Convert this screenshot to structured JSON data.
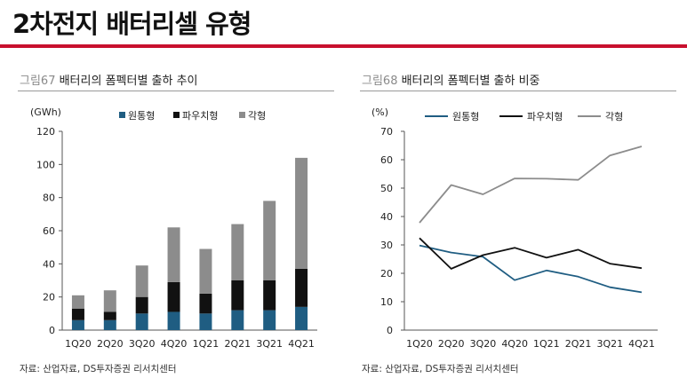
{
  "page": {
    "title": "2차전지 배터리셀 유형"
  },
  "colors": {
    "accent_red": "#c8102e",
    "cylindrical": "#1f5d82",
    "pouch": "#111111",
    "prismatic": "#8c8c8c"
  },
  "left": {
    "fig_num": "그림67",
    "fig_title": " 배터리의 폼펙터별 출하 추이",
    "source": "자료: 산업자료, DS투자증권 리서치센터"
  },
  "right": {
    "fig_num": "그림68",
    "fig_title": " 배터리의 폼펙터별 출하 비중",
    "source": "자료: 산업자료, DS투자증권 리서치센터"
  },
  "chart_data": [
    {
      "type": "bar",
      "stacked": true,
      "title": "배터리의 폼펙터별 출하 추이",
      "unit_label": "(GWh)",
      "ylim": [
        0,
        120
      ],
      "yticks": [
        0,
        20,
        40,
        60,
        80,
        100,
        120
      ],
      "categories": [
        "1Q20",
        "2Q20",
        "3Q20",
        "4Q20",
        "1Q21",
        "2Q21",
        "3Q21",
        "4Q21"
      ],
      "legend_position": "top",
      "series": [
        {
          "name": "원통형",
          "color": "#1f5d82",
          "values": [
            6,
            6,
            10,
            11,
            10,
            12,
            12,
            14
          ]
        },
        {
          "name": "파우치형",
          "color": "#111111",
          "values": [
            7,
            5,
            10,
            18,
            12,
            18,
            18,
            23
          ]
        },
        {
          "name": "각형",
          "color": "#8c8c8c",
          "values": [
            8,
            13,
            19,
            33,
            27,
            34,
            48,
            67
          ]
        }
      ]
    },
    {
      "type": "line",
      "title": "배터리의 폼펙터별 출하 비중",
      "unit_label": "(%)",
      "ylim": [
        0,
        70
      ],
      "yticks": [
        0,
        10,
        20,
        30,
        40,
        50,
        60,
        70
      ],
      "categories": [
        "1Q20",
        "2Q20",
        "3Q20",
        "4Q20",
        "1Q21",
        "2Q21",
        "3Q21",
        "4Q21"
      ],
      "legend_position": "top",
      "series": [
        {
          "name": "원통형",
          "color": "#1f5d82",
          "values": [
            29.8,
            27.3,
            25.8,
            17.6,
            21.0,
            18.8,
            15.1,
            13.3
          ]
        },
        {
          "name": "파우치형",
          "color": "#111111",
          "values": [
            32.4,
            21.6,
            26.4,
            29.0,
            25.5,
            28.3,
            23.4,
            21.8
          ]
        },
        {
          "name": "각형",
          "color": "#8c8c8c",
          "values": [
            37.8,
            51.1,
            47.8,
            53.4,
            53.3,
            52.9,
            61.5,
            64.7
          ]
        }
      ]
    }
  ]
}
